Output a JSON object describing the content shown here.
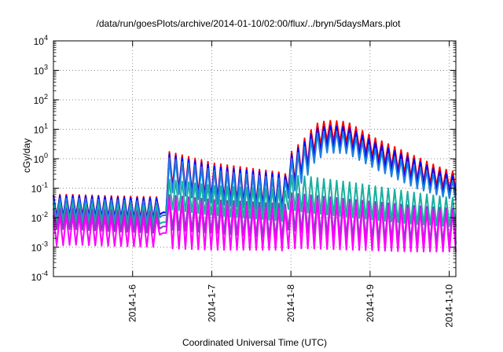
{
  "chart_data": {
    "type": "line",
    "title": "/data/run/goesPlots/archive/2014-01-10/02:00/flux/../bryn/5daysMars.plot",
    "xlabel": "Coordinated Universal Time (UTC)",
    "ylabel": "cGy/day",
    "yscale": "log",
    "grid": "dotted",
    "x_range": [
      "2014-01-05 00:00",
      "2014-01-10 02:00"
    ],
    "ylim": [
      0.0001,
      10000
    ],
    "y_ticks": [
      {
        "base": "10",
        "exp": "-4"
      },
      {
        "base": "10",
        "exp": "-3"
      },
      {
        "base": "10",
        "exp": "-2"
      },
      {
        "base": "10",
        "exp": "-1"
      },
      {
        "base": "10",
        "exp": "0"
      },
      {
        "base": "10",
        "exp": "1"
      },
      {
        "base": "10",
        "exp": "2"
      },
      {
        "base": "10",
        "exp": "3"
      },
      {
        "base": "10",
        "exp": "4"
      }
    ],
    "x_ticks": [
      "2014-1-6",
      "2014-1-7",
      "2014-1-8",
      "2014-1-9",
      "2014-1-10"
    ],
    "series": [
      {
        "color": "#ff0000",
        "envelope": [
          [
            0.0,
            0.06,
            0.01
          ],
          [
            0.05,
            0.06,
            0.012
          ],
          [
            0.13,
            0.055,
            0.01
          ],
          [
            0.261,
            0.05,
            0.009
          ],
          [
            0.262,
            0.012,
            0.012
          ],
          [
            0.27,
            0.015,
            0.015
          ],
          [
            0.281,
            0.015,
            0.015
          ],
          [
            0.282,
            1.8,
            0.12
          ],
          [
            0.4,
            0.7,
            0.045
          ],
          [
            0.56,
            0.35,
            0.022
          ],
          [
            0.579,
            0.3,
            0.02
          ],
          [
            0.58,
            1.2,
            0.07
          ],
          [
            0.63,
            6.0,
            0.55
          ],
          [
            0.65,
            15,
            2.0
          ],
          [
            0.68,
            20,
            4.0
          ],
          [
            0.73,
            18,
            3.5
          ],
          [
            0.8,
            5.0,
            1.0
          ],
          [
            0.9,
            1.2,
            0.2
          ],
          [
            0.97,
            0.45,
            0.1
          ],
          [
            1.0,
            0.35,
            0.08
          ]
        ]
      },
      {
        "color": "#0000ff",
        "envelope": [
          [
            0.0,
            0.055,
            0.01
          ],
          [
            0.05,
            0.055,
            0.011
          ],
          [
            0.13,
            0.05,
            0.01
          ],
          [
            0.261,
            0.045,
            0.008
          ],
          [
            0.262,
            0.012,
            0.012
          ],
          [
            0.27,
            0.015,
            0.015
          ],
          [
            0.281,
            0.015,
            0.015
          ],
          [
            0.282,
            1.5,
            0.1
          ],
          [
            0.4,
            0.55,
            0.04
          ],
          [
            0.56,
            0.3,
            0.02
          ],
          [
            0.579,
            0.25,
            0.018
          ],
          [
            0.58,
            1.0,
            0.06
          ],
          [
            0.63,
            4.5,
            0.4
          ],
          [
            0.65,
            10,
            1.3
          ],
          [
            0.68,
            13,
            2.5
          ],
          [
            0.73,
            12,
            2.2
          ],
          [
            0.8,
            3.5,
            0.7
          ],
          [
            0.9,
            0.9,
            0.15
          ],
          [
            0.97,
            0.32,
            0.07
          ],
          [
            1.0,
            0.25,
            0.06
          ]
        ]
      },
      {
        "color": "#1e7fe0",
        "envelope": [
          [
            0.0,
            0.045,
            0.008
          ],
          [
            0.05,
            0.045,
            0.009
          ],
          [
            0.13,
            0.04,
            0.008
          ],
          [
            0.261,
            0.035,
            0.007
          ],
          [
            0.262,
            0.01,
            0.01
          ],
          [
            0.27,
            0.012,
            0.012
          ],
          [
            0.281,
            0.012,
            0.012
          ],
          [
            0.282,
            1.1,
            0.08
          ],
          [
            0.4,
            0.4,
            0.03
          ],
          [
            0.56,
            0.22,
            0.015
          ],
          [
            0.579,
            0.18,
            0.013
          ],
          [
            0.58,
            0.7,
            0.04
          ],
          [
            0.63,
            3.0,
            0.25
          ],
          [
            0.65,
            7.0,
            0.8
          ],
          [
            0.68,
            9.0,
            1.6
          ],
          [
            0.73,
            8.0,
            1.5
          ],
          [
            0.8,
            2.2,
            0.45
          ],
          [
            0.9,
            0.6,
            0.1
          ],
          [
            0.97,
            0.22,
            0.05
          ],
          [
            1.0,
            0.17,
            0.04
          ]
        ]
      },
      {
        "color": "#18b0a0",
        "envelope": [
          [
            0.0,
            0.03,
            0.006
          ],
          [
            0.05,
            0.03,
            0.006
          ],
          [
            0.13,
            0.028,
            0.005
          ],
          [
            0.261,
            0.025,
            0.005
          ],
          [
            0.262,
            0.006,
            0.006
          ],
          [
            0.27,
            0.007,
            0.007
          ],
          [
            0.281,
            0.007,
            0.007
          ],
          [
            0.282,
            0.2,
            0.02
          ],
          [
            0.4,
            0.12,
            0.012
          ],
          [
            0.56,
            0.09,
            0.008
          ],
          [
            0.579,
            0.08,
            0.007
          ],
          [
            0.58,
            0.28,
            0.02
          ],
          [
            0.63,
            0.25,
            0.015
          ],
          [
            0.75,
            0.15,
            0.01
          ],
          [
            0.9,
            0.07,
            0.006
          ],
          [
            1.0,
            0.045,
            0.005
          ]
        ]
      },
      {
        "color": "#8040c0",
        "envelope": [
          [
            0.0,
            0.02,
            0.004
          ],
          [
            0.05,
            0.02,
            0.004
          ],
          [
            0.13,
            0.018,
            0.0035
          ],
          [
            0.261,
            0.016,
            0.003
          ],
          [
            0.262,
            0.004,
            0.004
          ],
          [
            0.27,
            0.005,
            0.005
          ],
          [
            0.281,
            0.005,
            0.005
          ],
          [
            0.282,
            0.06,
            0.004
          ],
          [
            0.4,
            0.04,
            0.003
          ],
          [
            0.56,
            0.03,
            0.002
          ],
          [
            0.579,
            0.028,
            0.002
          ],
          [
            0.58,
            0.07,
            0.004
          ],
          [
            0.63,
            0.06,
            0.003
          ],
          [
            0.75,
            0.04,
            0.002
          ],
          [
            0.9,
            0.025,
            0.0015
          ],
          [
            1.0,
            0.02,
            0.0013
          ]
        ]
      },
      {
        "color": "#ff00ff",
        "envelope": [
          [
            0.0,
            0.012,
            0.0011
          ],
          [
            0.05,
            0.012,
            0.0012
          ],
          [
            0.13,
            0.011,
            0.0011
          ],
          [
            0.261,
            0.01,
            0.001
          ],
          [
            0.262,
            0.0025,
            0.0025
          ],
          [
            0.27,
            0.003,
            0.003
          ],
          [
            0.281,
            0.003,
            0.003
          ],
          [
            0.282,
            0.045,
            0.0009
          ],
          [
            0.4,
            0.03,
            0.0008
          ],
          [
            0.56,
            0.02,
            0.0008
          ],
          [
            0.579,
            0.02,
            0.0007
          ],
          [
            0.58,
            0.05,
            0.0009
          ],
          [
            0.63,
            0.045,
            0.0009
          ],
          [
            0.75,
            0.03,
            0.0008
          ],
          [
            0.9,
            0.02,
            0.0007
          ],
          [
            1.0,
            0.016,
            0.0007
          ]
        ]
      }
    ]
  }
}
